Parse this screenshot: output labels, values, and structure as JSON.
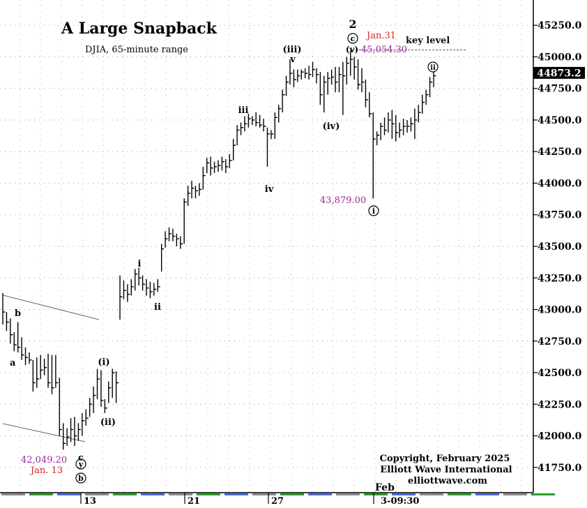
{
  "chart_data": {
    "type": "ohlc",
    "title": "A Large Snapback",
    "subtitle": "DJIA, 65-minute range",
    "ylim": [
      41550,
      45450
    ],
    "y_ticks": [
      41750,
      42000,
      42250,
      42500,
      42750,
      43000,
      43250,
      43500,
      43750,
      44000,
      44250,
      44500,
      44750,
      45000,
      45250
    ],
    "y_tick_labels": [
      "41750.0",
      "42000.0",
      "42250.0",
      "42500.0",
      "42750.0",
      "43000.0",
      "43250.0",
      "43500.0",
      "43750.0",
      "44000.0",
      "44250.0",
      "44500.0",
      "44750.0",
      "45000.0",
      "45250.0"
    ],
    "last_price": "44873.2",
    "x_tick_labels": [
      "13",
      "21",
      "27",
      "3-09:30"
    ],
    "month_label": "Feb",
    "grid": "dotted",
    "bars": [
      [
        43130,
        42880,
        42980
      ],
      [
        42980,
        42830,
        42900
      ],
      [
        42930,
        42730,
        42800
      ],
      [
        42820,
        42670,
        42720
      ],
      [
        42900,
        42660,
        42700
      ],
      [
        42780,
        42600,
        42640
      ],
      [
        42700,
        42560,
        42620
      ],
      [
        42660,
        42570,
        42600
      ],
      [
        42600,
        42350,
        42420
      ],
      [
        42620,
        42380,
        42450
      ],
      [
        42640,
        42450,
        42520
      ],
      [
        42610,
        42480,
        42540
      ],
      [
        42650,
        42380,
        42420
      ],
      [
        42640,
        42330,
        42380
      ],
      [
        42640,
        42380,
        42420
      ],
      [
        42460,
        42000,
        42050
      ],
      [
        42100,
        41890,
        41940
      ],
      [
        42060,
        41920,
        41990
      ],
      [
        42140,
        41950,
        42050
      ],
      [
        42150,
        41920,
        42000
      ],
      [
        42100,
        41960,
        42050
      ],
      [
        42180,
        42000,
        42120
      ],
      [
        42210,
        42080,
        42140
      ],
      [
        42300,
        42150,
        42250
      ],
      [
        42390,
        42180,
        42320
      ],
      [
        42530,
        42290,
        42450
      ],
      [
        42520,
        42230,
        42280
      ],
      [
        42290,
        42180,
        42220
      ],
      [
        42430,
        42260,
        42380
      ],
      [
        42530,
        42300,
        42500
      ],
      [
        42510,
        42260,
        42420
      ],
      [
        43270,
        42920,
        43100
      ],
      [
        43230,
        43080,
        43150
      ],
      [
        43200,
        43060,
        43120
      ],
      [
        43240,
        43110,
        43180
      ],
      [
        43320,
        43150,
        43280
      ],
      [
        43330,
        43190,
        43250
      ],
      [
        43270,
        43150,
        43200
      ],
      [
        43240,
        43110,
        43170
      ],
      [
        43220,
        43090,
        43140
      ],
      [
        43210,
        43110,
        43160
      ],
      [
        43240,
        43140,
        43180
      ],
      [
        43520,
        43300,
        43480
      ],
      [
        43620,
        43490,
        43560
      ],
      [
        43650,
        43540,
        43600
      ],
      [
        43640,
        43540,
        43580
      ],
      [
        43600,
        43500,
        43560
      ],
      [
        43580,
        43480,
        43520
      ],
      [
        43880,
        43520,
        43850
      ],
      [
        43980,
        43820,
        43920
      ],
      [
        44020,
        43880,
        43960
      ],
      [
        43980,
        43880,
        43940
      ],
      [
        44000,
        43900,
        43950
      ],
      [
        44130,
        43950,
        44060
      ],
      [
        44200,
        44080,
        44160
      ],
      [
        44210,
        44060,
        44120
      ],
      [
        44170,
        44080,
        44130
      ],
      [
        44180,
        44090,
        44140
      ],
      [
        44210,
        44100,
        44170
      ],
      [
        44190,
        44080,
        44130
      ],
      [
        44230,
        44120,
        44180
      ],
      [
        44350,
        44180,
        44300
      ],
      [
        44460,
        44300,
        44420
      ],
      [
        44480,
        44380,
        44440
      ],
      [
        44530,
        44410,
        44470
      ],
      [
        44550,
        44440,
        44510
      ],
      [
        44530,
        44460,
        44500
      ],
      [
        44560,
        44450,
        44480
      ],
      [
        44540,
        44440,
        44460
      ],
      [
        44510,
        44410,
        44450
      ],
      [
        44440,
        44130,
        44390
      ],
      [
        44420,
        44350,
        44390
      ],
      [
        44560,
        44350,
        44520
      ],
      [
        44620,
        44480,
        44590
      ],
      [
        44740,
        44560,
        44700
      ],
      [
        44850,
        44690,
        44800
      ],
      [
        44980,
        44780,
        44870
      ],
      [
        44900,
        44760,
        44820
      ],
      [
        44900,
        44800,
        44850
      ],
      [
        44900,
        44820,
        44880
      ],
      [
        44910,
        44830,
        44870
      ],
      [
        44930,
        44820,
        44860
      ],
      [
        44960,
        44840,
        44900
      ],
      [
        44910,
        44790,
        44860
      ],
      [
        44880,
        44620,
        44700
      ],
      [
        44850,
        44560,
        44800
      ],
      [
        44880,
        44700,
        44830
      ],
      [
        44900,
        44780,
        44840
      ],
      [
        44920,
        44720,
        44800
      ],
      [
        44920,
        44720,
        44860
      ],
      [
        44960,
        44540,
        44850
      ],
      [
        45000,
        44780,
        44950
      ],
      [
        45050,
        44850,
        44980
      ],
      [
        45000,
        44820,
        44920
      ],
      [
        44980,
        44740,
        44780
      ],
      [
        44910,
        44720,
        44800
      ],
      [
        44820,
        44600,
        44660
      ],
      [
        44720,
        44520,
        44550
      ],
      [
        44560,
        43879,
        44350
      ],
      [
        44410,
        44300,
        44380
      ],
      [
        44480,
        44340,
        44450
      ],
      [
        44520,
        44380,
        44420
      ],
      [
        44560,
        44400,
        44500
      ],
      [
        44580,
        44350,
        44470
      ],
      [
        44540,
        44330,
        44400
      ],
      [
        44480,
        44360,
        44420
      ],
      [
        44510,
        44380,
        44450
      ],
      [
        44500,
        44400,
        44450
      ],
      [
        44520,
        44410,
        44470
      ],
      [
        44590,
        44350,
        44500
      ],
      [
        44620,
        44480,
        44560
      ],
      [
        44700,
        44550,
        44640
      ],
      [
        44740,
        44620,
        44700
      ],
      [
        44840,
        44680,
        44800
      ],
      [
        44880,
        44760,
        44850
      ]
    ],
    "wave_labels": [
      "b",
      "a",
      "c",
      "y",
      "b",
      "(i)",
      "(ii)",
      "i",
      "ii",
      "iii",
      "iv",
      "(iii)",
      "v",
      "(iv)",
      "2",
      "c",
      "(v)",
      "i",
      "ii"
    ],
    "annotations": [
      {
        "label": "date_jan31",
        "text": "Jan.31",
        "color": "#e02020"
      },
      {
        "label": "key_level",
        "text": "key level",
        "color": "#111111"
      },
      {
        "label": "price_45054",
        "text": "45,054.30",
        "color": "#9a2a9a"
      },
      {
        "label": "price_43879",
        "text": "43,879.00",
        "color": "#9a2a9a"
      },
      {
        "label": "price_42049",
        "text": "42,049.20",
        "color": "#9a2a9a"
      },
      {
        "label": "date_jan13",
        "text": "Jan. 13",
        "color": "#e02020"
      }
    ],
    "key_level": 45054.3
  },
  "footer": {
    "copyright": "Copyright, February 2025",
    "org": "Elliott Wave International",
    "site": "elliottwave.com"
  }
}
